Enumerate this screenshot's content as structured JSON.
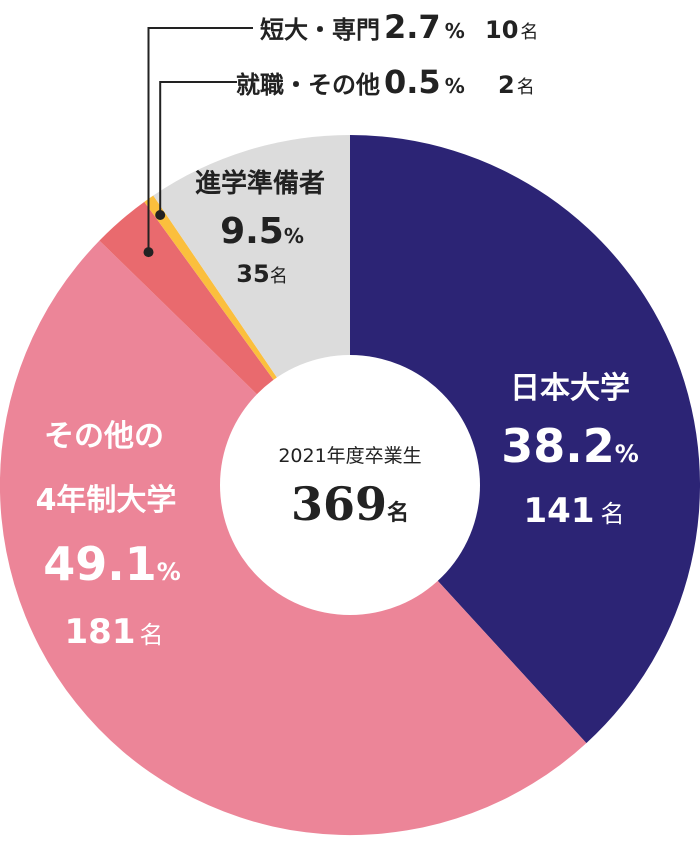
{
  "chart_data": {
    "type": "pie",
    "style": "donut",
    "center": {
      "label": "2021年度卒業生",
      "total_value": "369",
      "total_unit": "名"
    },
    "percent_unit": "%",
    "count_unit": "名",
    "slices": [
      {
        "key": "nihon",
        "name": "日本大学",
        "name_lines": [
          "日本大学"
        ],
        "percent": 38.2,
        "percent_text": "38.2",
        "count": 141,
        "count_text": "141",
        "color": "#2c2475",
        "text_color": "#ffffff"
      },
      {
        "key": "other4",
        "name": "その他の4年制大学",
        "name_lines": [
          "その他の",
          "4年制大学"
        ],
        "percent": 49.1,
        "percent_text": "49.1",
        "count": 181,
        "count_text": "181",
        "color": "#ec8598",
        "text_color": "#ffffff"
      },
      {
        "key": "tandai",
        "name": "短大・専門",
        "name_lines": [
          "短大・専門"
        ],
        "percent": 2.7,
        "percent_text": "2.7",
        "count": 10,
        "count_text": "10",
        "color": "#e96a6e",
        "text_color": "#222222"
      },
      {
        "key": "shushoku",
        "name": "就職・その他",
        "name_lines": [
          "就職・その他"
        ],
        "percent": 0.5,
        "percent_text": "0.5",
        "count": 2,
        "count_text": "2",
        "color": "#fbbf3d",
        "text_color": "#222222"
      },
      {
        "key": "junbi",
        "name": "進学準備者",
        "name_lines": [
          "進学準備者"
        ],
        "percent": 9.5,
        "percent_text": "9.5",
        "count": 35,
        "count_text": "35",
        "color": "#dcdcdc",
        "text_color": "#222222"
      }
    ]
  }
}
